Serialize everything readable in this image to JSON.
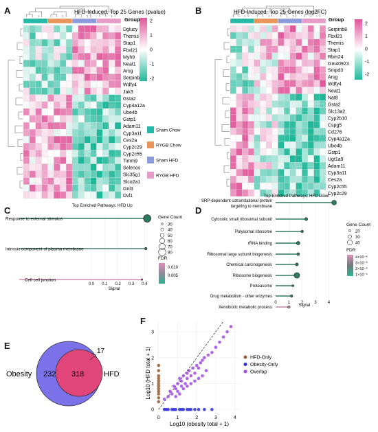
{
  "colors": {
    "low": "#1fb89a",
    "mid": "#ffffff",
    "high": "#e0559a",
    "sham_chow": "#26b8a6",
    "rygb_chow": "#e8955a",
    "sham_hfd": "#8c9bdb",
    "rygb_hfd": "#e79cc8",
    "lollipop_dark": "#2f7a63",
    "lollipop_mid": "#5db89e",
    "lollipop_pink": "#e28cb9",
    "hfd_only": "#9a5a2c",
    "obesity_only": "#2c2cd8",
    "overlap": "#a249e6",
    "venn_obesity": "#7b72ea",
    "venn_hfd": "#e0467a"
  },
  "panels": {
    "A": {
      "label": "A",
      "title": "HFD-Induced, Top 25 Genes (pvalue)",
      "genes": [
        "Dglucy",
        "Themis",
        "Stap1",
        "Fbxl21",
        "Myh9",
        "Neat1",
        "Arsg",
        "Serpinb8",
        "Wdfy4",
        "Jak3",
        "Gsta2",
        "Cyp4a12a",
        "Ube4b",
        "Gstp1",
        "Adam11",
        "Cyp3a11",
        "Ces2a",
        "Cyp2c29",
        "Cyp2c55",
        "Timm9",
        "Selenos",
        "Slc35g1",
        "Slco2a1",
        "Gnl3",
        "Dvl1"
      ],
      "group_title": "Group",
      "scale_ticks": [
        "2",
        "1",
        "0",
        "-1",
        "-2"
      ],
      "legend": [
        "Sham Chow",
        "RYGB Chow",
        "Sham HFD",
        "RYGB HFD"
      ]
    },
    "B": {
      "label": "B",
      "title": "HFD-Induced, Top 25 Genes (log2FC)",
      "genes": [
        "Serpinb8",
        "Fbxl21",
        "Themis",
        "Stap1",
        "Rbm24",
        "Gm40923",
        "Smpd3",
        "Arsg",
        "Wdfy4",
        "Neat1",
        "Nat8",
        "Gsta2",
        "Slc13a2",
        "Cyp2b10",
        "Cspg5",
        "Cd276",
        "Cyp4a12a",
        "Ube4b",
        "Gstp1",
        "Ugt1a9",
        "Adam11",
        "Cyp3a11",
        "Ces2a",
        "Cyp2c55",
        "Cyp2c29"
      ],
      "group_title": "Group",
      "scale_ticks": [
        "2",
        "1",
        "0",
        "-1",
        "-2"
      ]
    },
    "C": {
      "label": "C",
      "title": "Top Enriched Pathways: HFD Up",
      "xlabel": "Signal",
      "ticks": [
        "0.0",
        "0.1",
        "0.2",
        "0.3",
        "0.4"
      ],
      "gene_count_title": "Gene Count",
      "gene_count_values": [
        "30",
        "40",
        "50",
        "60",
        "70",
        "80"
      ],
      "fdr_title": "FDR",
      "fdr_ticks": [
        "0.010",
        "0.005"
      ]
    },
    "D": {
      "label": "D",
      "title": "Top Enriched Pathways: HFD Down",
      "xlabel": "Signal",
      "ticks": [
        "0",
        "1",
        "2",
        "3",
        "4"
      ],
      "gene_count_title": "Gene Count",
      "gene_count_values": [
        "20",
        "30",
        "40"
      ],
      "fdr_title": "FDR",
      "fdr_ticks": [
        "4×10⁻⁶",
        "3×10⁻⁶",
        "2×10⁻⁶",
        "1×10⁻⁶"
      ]
    },
    "E": {
      "label": "E",
      "obesity_label": "Obesity",
      "hfd_label": "HFD",
      "obesity_only": "232",
      "overlap": "318",
      "hfd_only": "17"
    },
    "F": {
      "label": "F",
      "xlabel": "Log10 (obesity total + 1)",
      "ylabel": "Log10 (HFD total + 1)",
      "xticks": [
        "0",
        "1",
        "2",
        "3",
        "4"
      ],
      "yticks": [
        "0",
        "1",
        "2",
        "3"
      ],
      "legend": [
        "HFD-Only",
        "Obesity-Only",
        "Overlap"
      ]
    }
  },
  "chart_data": [
    {
      "type": "bar",
      "title": "Top Enriched Pathways: HFD Up",
      "xlabel": "Signal",
      "xlim": [
        0,
        0.45
      ],
      "categories": [
        "Response to external stimulus",
        "Intrinsic component of plasma membrane",
        "Cell-cell junction"
      ],
      "values": [
        0.42,
        0.41,
        0.38
      ],
      "gene_count": [
        80,
        35,
        30
      ],
      "fdr": [
        0.004,
        0.005,
        0.011
      ]
    },
    {
      "type": "bar",
      "title": "Top Enriched Pathways: HFD Down",
      "xlabel": "Signal",
      "xlim": [
        0,
        4.6
      ],
      "categories": [
        "SRP-dependent cotranslational protein targeting to membrane",
        "Cytosolic small ribosomal subunit",
        "Polysomal ribosome",
        "rRNA binding",
        "Ribosomal large subunit biogenesis",
        "Chemical carcinogenesis",
        "Ribosome biogenesis",
        "Proteasome",
        "Drug metabolism - other enzymes",
        "Xenobiotic metabolic process"
      ],
      "values": [
        4.4,
        2.3,
        2.0,
        1.7,
        1.7,
        1.6,
        1.6,
        1.3,
        1.2,
        1.0
      ],
      "gene_count": [
        35,
        25,
        22,
        28,
        24,
        25,
        40,
        20,
        22,
        22
      ],
      "fdr": [
        1e-06,
        1e-06,
        1e-06,
        1e-06,
        1e-06,
        1e-06,
        1e-06,
        1e-06,
        1e-06,
        4e-06
      ]
    },
    {
      "type": "scatter",
      "xlabel": "Log10 (obesity total + 1)",
      "ylabel": "Log10 (HFD total + 1)",
      "xlim": [
        -0.1,
        4.3
      ],
      "ylim": [
        -0.1,
        3.4
      ],
      "series": [
        {
          "name": "HFD-Only",
          "x": [
            0,
            0,
            0,
            0,
            0,
            0,
            0,
            0,
            0,
            0,
            0,
            0
          ],
          "y": [
            0.3,
            0.45,
            0.6,
            0.7,
            0.8,
            0.9,
            1.0,
            1.1,
            1.2,
            1.3,
            1.5,
            1.7
          ]
        },
        {
          "name": "Obesity-Only",
          "x": [
            0.3,
            0.5,
            0.7,
            0.9,
            1.1,
            1.3,
            1.5,
            1.7,
            1.9,
            2.1,
            0.4,
            0.8,
            1.2,
            1.6,
            2.4,
            2.8
          ],
          "y": [
            0,
            0,
            0,
            0,
            0,
            0,
            0,
            0,
            0,
            0,
            0,
            0,
            0,
            0,
            0,
            0
          ]
        },
        {
          "name": "Overlap",
          "x": [
            0.3,
            0.5,
            0.6,
            0.7,
            0.8,
            0.9,
            1.0,
            1.0,
            1.1,
            1.2,
            1.2,
            1.3,
            1.4,
            1.5,
            1.5,
            1.6,
            1.7,
            1.8,
            1.9,
            2.0,
            2.1,
            2.2,
            2.3,
            2.4,
            2.6,
            2.8,
            3.0,
            3.2,
            3.4,
            3.6,
            3.8,
            0.9,
            1.1,
            1.3,
            1.5,
            1.7,
            1.9,
            2.1,
            2.3,
            2.5
          ],
          "y": [
            0.4,
            0.5,
            0.7,
            0.6,
            0.9,
            0.8,
            1.0,
            0.7,
            1.2,
            0.9,
            1.1,
            1.3,
            1.0,
            1.4,
            1.2,
            1.5,
            1.3,
            1.6,
            1.4,
            1.7,
            1.6,
            1.8,
            1.9,
            2.0,
            2.1,
            2.2,
            2.4,
            2.6,
            2.8,
            3.0,
            3.2,
            0.5,
            0.6,
            0.8,
            0.9,
            1.0,
            1.1,
            1.2,
            1.3,
            1.5
          ]
        }
      ]
    }
  ]
}
